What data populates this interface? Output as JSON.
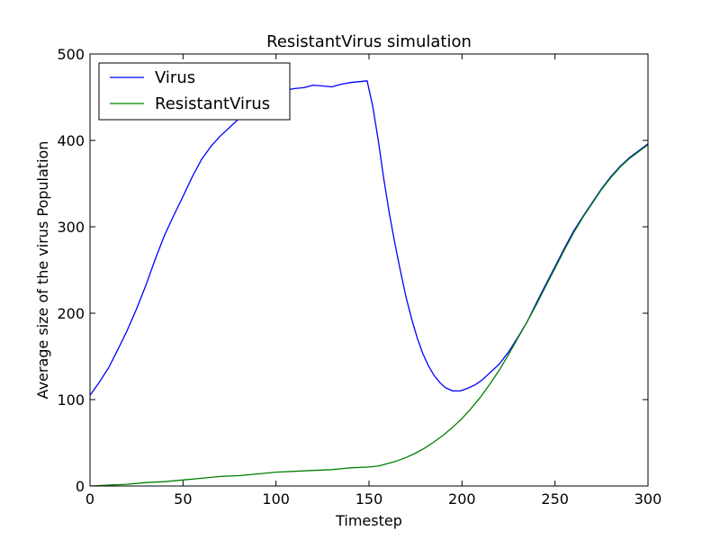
{
  "chart_data": {
    "type": "line",
    "title": "ResistantVirus simulation",
    "xlabel": "Timestep",
    "ylabel": "Average size of the virus Population",
    "xlim": [
      0,
      300
    ],
    "ylim": [
      0,
      500
    ],
    "xticks": [
      0,
      50,
      100,
      150,
      200,
      250,
      300
    ],
    "yticks": [
      0,
      100,
      200,
      300,
      400,
      500
    ],
    "grid": false,
    "legend_position": "top-left",
    "series": [
      {
        "name": "Virus",
        "color": "#0000ff",
        "points": [
          [
            0,
            105
          ],
          [
            5,
            120
          ],
          [
            10,
            137
          ],
          [
            15,
            158
          ],
          [
            20,
            180
          ],
          [
            25,
            205
          ],
          [
            30,
            232
          ],
          [
            35,
            262
          ],
          [
            40,
            290
          ],
          [
            45,
            313
          ],
          [
            50,
            335
          ],
          [
            55,
            358
          ],
          [
            60,
            378
          ],
          [
            65,
            393
          ],
          [
            70,
            405
          ],
          [
            75,
            415
          ],
          [
            80,
            425
          ],
          [
            85,
            432
          ],
          [
            90,
            442
          ],
          [
            95,
            448
          ],
          [
            100,
            455
          ],
          [
            105,
            458
          ],
          [
            110,
            460
          ],
          [
            115,
            461
          ],
          [
            120,
            464
          ],
          [
            125,
            463
          ],
          [
            130,
            462
          ],
          [
            135,
            465
          ],
          [
            140,
            467
          ],
          [
            145,
            468
          ],
          [
            149,
            469
          ],
          [
            152,
            440
          ],
          [
            155,
            400
          ],
          [
            158,
            355
          ],
          [
            161,
            315
          ],
          [
            164,
            280
          ],
          [
            167,
            248
          ],
          [
            170,
            218
          ],
          [
            173,
            193
          ],
          [
            176,
            171
          ],
          [
            179,
            153
          ],
          [
            182,
            139
          ],
          [
            185,
            128
          ],
          [
            188,
            120
          ],
          [
            191,
            114
          ],
          [
            195,
            110
          ],
          [
            199,
            110
          ],
          [
            203,
            113
          ],
          [
            207,
            117
          ],
          [
            211,
            123
          ],
          [
            215,
            131
          ],
          [
            220,
            141
          ],
          [
            225,
            155
          ],
          [
            230,
            172
          ],
          [
            235,
            190
          ],
          [
            240,
            212
          ],
          [
            245,
            233
          ],
          [
            250,
            254
          ],
          [
            255,
            275
          ],
          [
            260,
            295
          ],
          [
            265,
            312
          ],
          [
            270,
            328
          ],
          [
            275,
            344
          ],
          [
            280,
            358
          ],
          [
            285,
            370
          ],
          [
            290,
            380
          ],
          [
            295,
            388
          ],
          [
            300,
            396
          ]
        ]
      },
      {
        "name": "ResistantVirus",
        "color": "#008000",
        "points": [
          [
            0,
            0
          ],
          [
            10,
            1
          ],
          [
            20,
            2
          ],
          [
            30,
            4
          ],
          [
            40,
            5
          ],
          [
            50,
            7
          ],
          [
            60,
            9
          ],
          [
            70,
            11
          ],
          [
            80,
            12
          ],
          [
            90,
            14
          ],
          [
            100,
            16
          ],
          [
            110,
            17
          ],
          [
            120,
            18
          ],
          [
            130,
            19
          ],
          [
            140,
            21
          ],
          [
            150,
            22
          ],
          [
            155,
            23
          ],
          [
            160,
            26
          ],
          [
            165,
            29
          ],
          [
            170,
            33
          ],
          [
            175,
            38
          ],
          [
            180,
            44
          ],
          [
            185,
            51
          ],
          [
            190,
            59
          ],
          [
            195,
            68
          ],
          [
            200,
            78
          ],
          [
            205,
            90
          ],
          [
            210,
            103
          ],
          [
            215,
            118
          ],
          [
            220,
            134
          ],
          [
            225,
            152
          ],
          [
            230,
            171
          ],
          [
            235,
            190
          ],
          [
            240,
            210
          ],
          [
            245,
            231
          ],
          [
            250,
            252
          ],
          [
            255,
            273
          ],
          [
            260,
            293
          ],
          [
            265,
            311
          ],
          [
            270,
            327
          ],
          [
            275,
            343
          ],
          [
            280,
            357
          ],
          [
            285,
            369
          ],
          [
            290,
            379
          ],
          [
            295,
            387
          ],
          [
            300,
            395
          ]
        ]
      }
    ]
  }
}
